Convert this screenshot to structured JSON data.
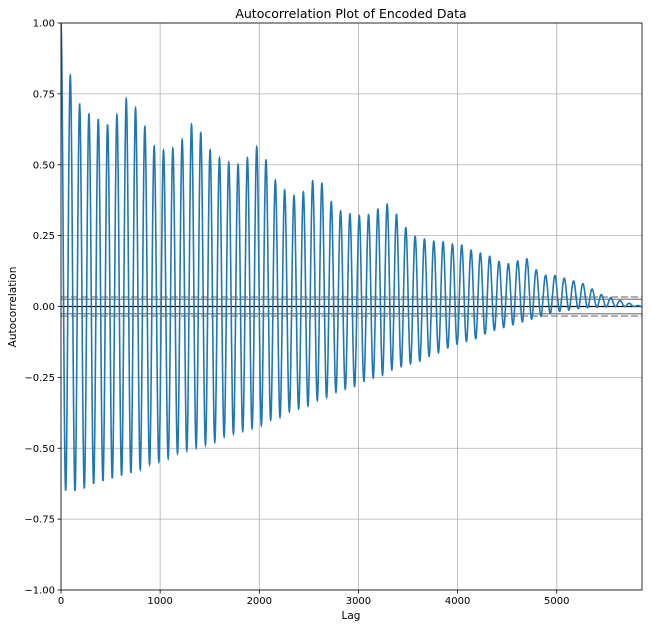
{
  "chart_data": {
    "type": "line",
    "title": "Autocorrelation Plot of Encoded Data",
    "xlabel": "Lag",
    "ylabel": "Autocorrelation",
    "xlim": [
      0,
      5860
    ],
    "ylim": [
      -1.0,
      1.0
    ],
    "xticks": [
      0,
      1000,
      2000,
      3000,
      4000,
      5000
    ],
    "xtick_labels": [
      "0",
      "1000",
      "2000",
      "3000",
      "4000",
      "5000"
    ],
    "yticks": [
      -1.0,
      -0.75,
      -0.5,
      -0.25,
      0.0,
      0.25,
      0.5,
      0.75,
      1.0
    ],
    "ytick_labels": [
      "−1.00",
      "−0.75",
      "−0.50",
      "−0.25",
      "0.00",
      "0.25",
      "0.50",
      "0.75",
      "1.00"
    ],
    "grid": true,
    "period": 94,
    "n_obs": 5860,
    "series": [
      {
        "color": "#1f77b4",
        "envelope_lag": [
          0,
          90,
          200,
          285,
          380,
          480,
          575,
          670,
          770,
          865,
          960,
          1060,
          1155,
          1250,
          1345,
          1440,
          1540,
          1635,
          1730,
          1825,
          1920,
          2015,
          2115,
          2210,
          2305,
          2400,
          2495,
          2590,
          2685,
          2785,
          2880,
          2975,
          3070,
          3165,
          3260,
          3355,
          3450,
          3545,
          3645,
          3740,
          3835,
          3930,
          4025,
          4120,
          4215,
          4310,
          4410,
          4505,
          4600,
          4695,
          4790,
          4885,
          4980,
          5075,
          5170,
          5270,
          5365,
          5460,
          5555,
          5650,
          5745,
          5860
        ],
        "envelope_peak": [
          1.0,
          0.82,
          0.7,
          0.68,
          0.66,
          0.64,
          0.68,
          0.74,
          0.69,
          0.62,
          0.55,
          0.55,
          0.56,
          0.6,
          0.66,
          0.59,
          0.53,
          0.52,
          0.5,
          0.5,
          0.54,
          0.58,
          0.46,
          0.43,
          0.39,
          0.39,
          0.42,
          0.47,
          0.39,
          0.34,
          0.33,
          0.32,
          0.32,
          0.33,
          0.37,
          0.34,
          0.29,
          0.25,
          0.24,
          0.23,
          0.23,
          0.22,
          0.22,
          0.2,
          0.19,
          0.18,
          0.16,
          0.15,
          0.16,
          0.17,
          0.13,
          0.11,
          0.11,
          0.1,
          0.09,
          0.08,
          0.06,
          0.04,
          0.03,
          0.02,
          0.01,
          0.0
        ],
        "envelope_trough": [
          -0.65,
          -0.65,
          -0.65,
          -0.63,
          -0.62,
          -0.61,
          -0.6,
          -0.59,
          -0.58,
          -0.56,
          -0.55,
          -0.54,
          -0.52,
          -0.51,
          -0.5,
          -0.49,
          -0.48,
          -0.46,
          -0.45,
          -0.44,
          -0.43,
          -0.42,
          -0.4,
          -0.39,
          -0.37,
          -0.36,
          -0.35,
          -0.33,
          -0.32,
          -0.3,
          -0.29,
          -0.28,
          -0.26,
          -0.25,
          -0.24,
          -0.22,
          -0.21,
          -0.2,
          -0.19,
          -0.17,
          -0.16,
          -0.14,
          -0.13,
          -0.12,
          -0.11,
          -0.09,
          -0.08,
          -0.07,
          -0.06,
          -0.05,
          -0.04,
          -0.03,
          -0.02,
          -0.015,
          -0.01,
          -0.005,
          -0.003,
          -0.002,
          -0.001,
          0.0,
          0.0,
          0.0
        ]
      }
    ],
    "reference_lines": [
      {
        "y": 0.0,
        "style": "solid",
        "color": "#000000"
      },
      {
        "y": 0.0335,
        "style": "dashed",
        "color": "#808080"
      },
      {
        "y": -0.0335,
        "style": "dashed",
        "color": "#808080"
      },
      {
        "y": 0.0256,
        "style": "solid",
        "color": "#808080"
      },
      {
        "y": -0.0256,
        "style": "solid",
        "color": "#808080"
      }
    ]
  }
}
